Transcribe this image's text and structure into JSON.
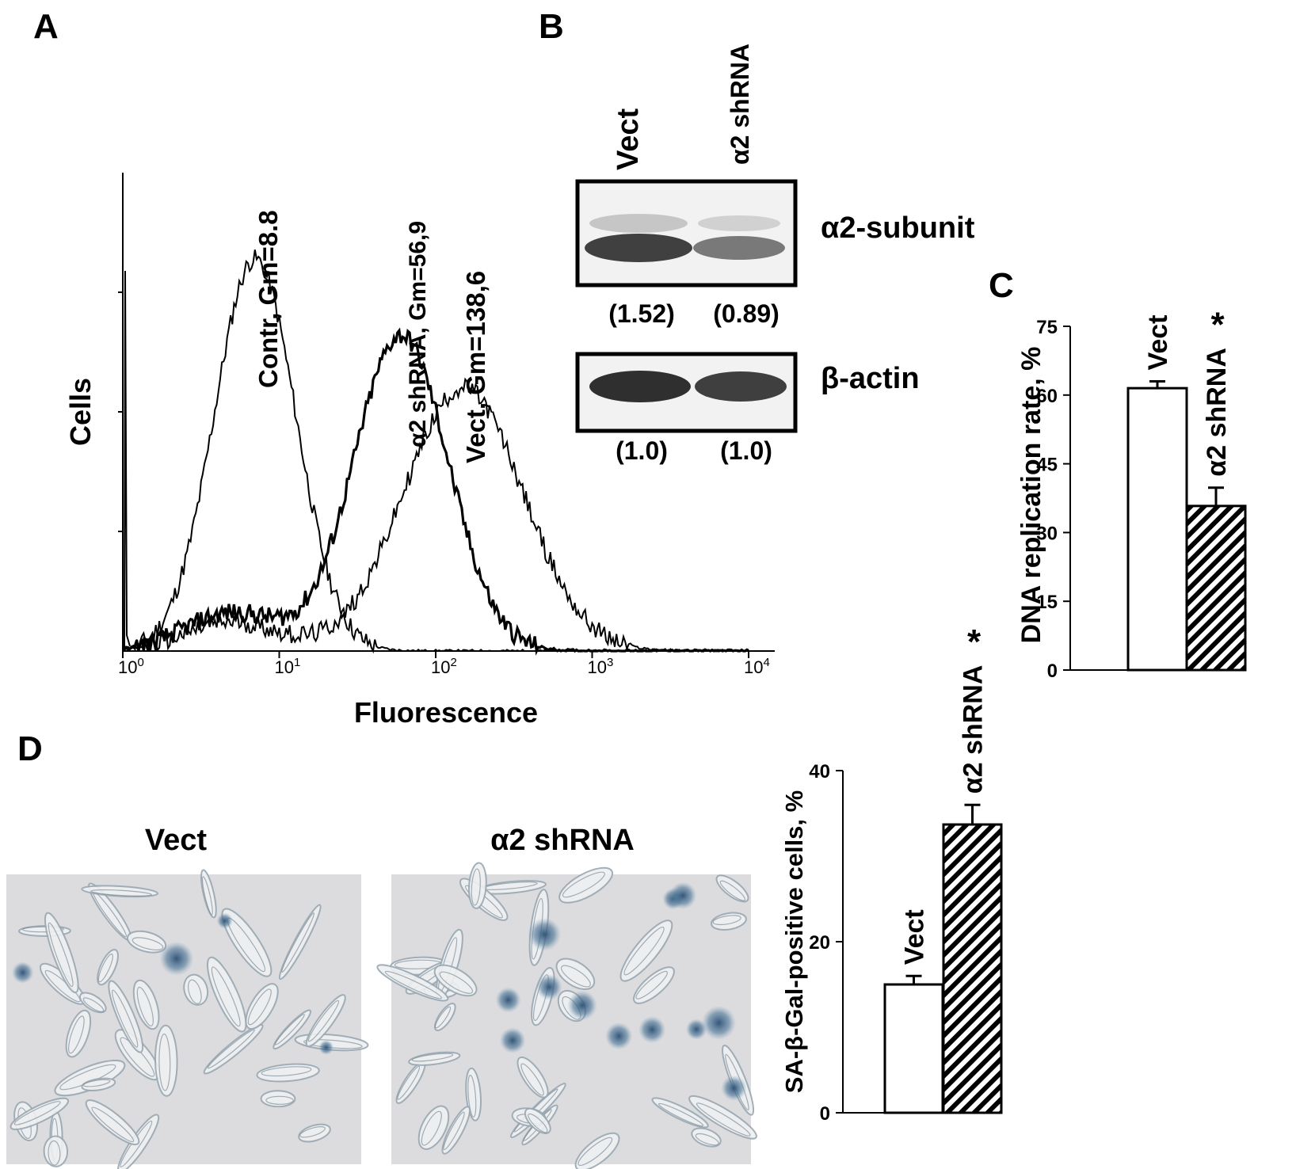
{
  "panel_labels": {
    "a": "A",
    "b": "B",
    "c": "C",
    "d": "D"
  },
  "chart_data": [
    {
      "panel": "A",
      "type": "line",
      "xlabel": "Fluorescence",
      "ylabel": "Cells",
      "xscale": "log",
      "xlim": [
        1,
        10000
      ],
      "x_ticks": [
        {
          "base": "10",
          "exp": "0"
        },
        {
          "base": "10",
          "exp": "1"
        },
        {
          "base": "10",
          "exp": "2"
        },
        {
          "base": "10",
          "exp": "3"
        },
        {
          "base": "10",
          "exp": "4"
        }
      ],
      "annotations": [
        "Contr, Gm=8.8",
        "α2 shRNA, Gm=56,9",
        "Vect, Gm=138,6"
      ],
      "series": [
        {
          "name": "Contr, Gm=8.8",
          "peak_x": 7,
          "peak_rel": 0.82,
          "log_width": 0.26,
          "jitter": 0.04
        },
        {
          "name": "α2 shRNA, Gm=56,9",
          "peak_x": 60,
          "peak_rel": 0.66,
          "log_width": 0.3,
          "shoulder_x": 5,
          "shoulder_rel": 0.08,
          "jitter": 0.04
        },
        {
          "name": "Vect, Gm=138,6",
          "peak_x": 150,
          "peak_rel": 0.55,
          "log_width": 0.38,
          "shoulder_x": 5,
          "shoulder_rel": 0.06,
          "jitter": 0.04
        }
      ]
    },
    {
      "panel": "C",
      "type": "bar",
      "ylabel": "DNA replication rate, %",
      "ylim": [
        0,
        75
      ],
      "yticks": [
        "0",
        "15",
        "30",
        "45",
        "60",
        "75"
      ],
      "categories": [
        "Vect",
        "α2 shRNA"
      ],
      "values": [
        61.5,
        35.8
      ],
      "errors": [
        1.5,
        4
      ],
      "fill": [
        "white",
        "hatched"
      ],
      "significance": [
        "",
        "*"
      ]
    },
    {
      "panel": "D",
      "type": "bar",
      "ylabel": "SA-β-Gal-positive cells, %",
      "ylim": [
        0,
        40
      ],
      "yticks": [
        "0",
        "20",
        "40"
      ],
      "categories": [
        "Vect",
        "α2 shRNA"
      ],
      "values": [
        15,
        33.7
      ],
      "errors": [
        1,
        2.3
      ],
      "fill": [
        "white",
        "hatched"
      ],
      "significance": [
        "",
        "*"
      ]
    }
  ],
  "western_blot": {
    "lanes": [
      "Vect",
      "α2 shRNA"
    ],
    "rows": [
      {
        "label": "α2-subunit",
        "values": [
          "(1.52)",
          "(0.89)"
        ]
      },
      {
        "label": "β-actin",
        "values": [
          "(1.0)",
          "(1.0)"
        ]
      }
    ]
  },
  "micrographs": [
    {
      "label": "Vect"
    },
    {
      "label": "α2 shRNA"
    }
  ]
}
